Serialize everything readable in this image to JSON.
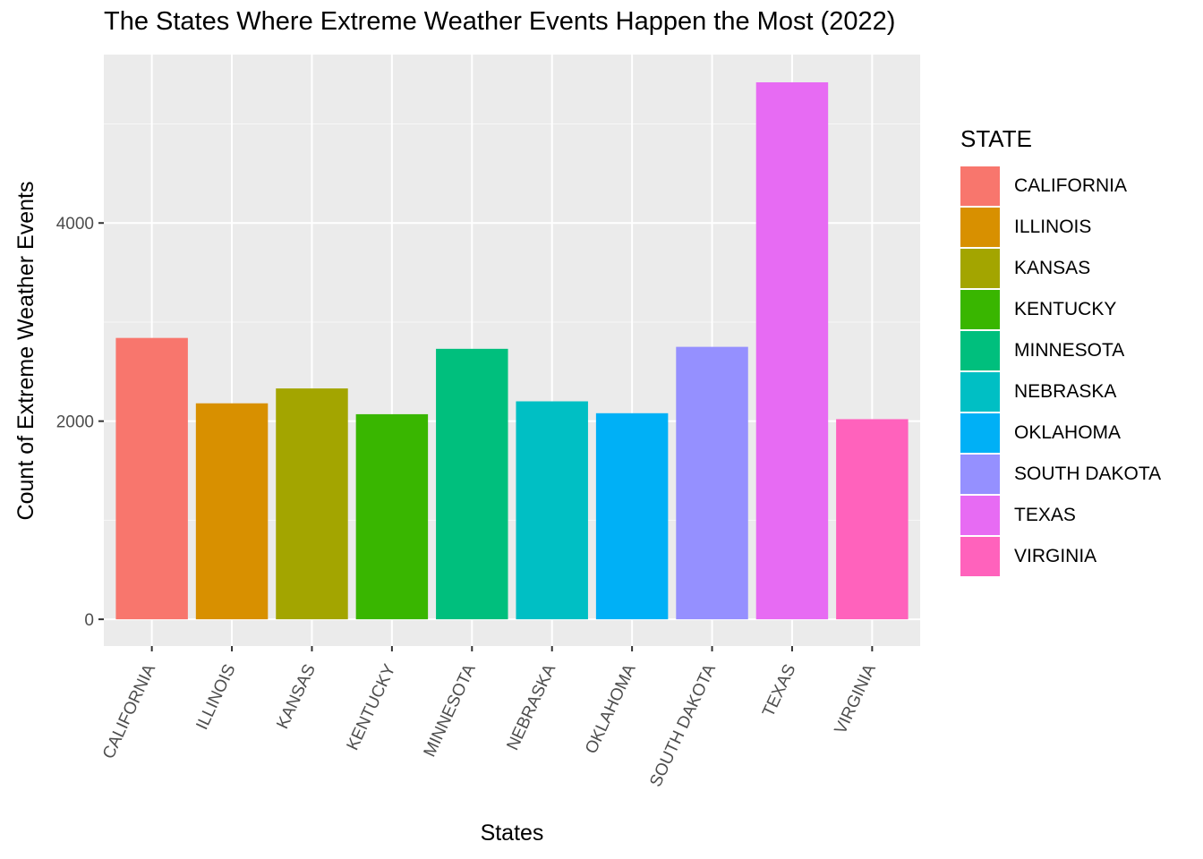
{
  "chart_data": {
    "type": "bar",
    "title": "The States Where Extreme Weather Events Happen the Most (2022)",
    "xlabel": "States",
    "ylabel": "Count of Extreme Weather Events",
    "categories": [
      "CALIFORNIA",
      "ILLINOIS",
      "KANSAS",
      "KENTUCKY",
      "MINNESOTA",
      "NEBRASKA",
      "OKLAHOMA",
      "SOUTH DAKOTA",
      "TEXAS",
      "VIRGINIA"
    ],
    "values": [
      2840,
      2180,
      2330,
      2070,
      2730,
      2200,
      2080,
      2750,
      5420,
      2020
    ],
    "colors": [
      "#F8766D",
      "#D89000",
      "#A3A500",
      "#39B600",
      "#00BF7D",
      "#00BFC4",
      "#00B0F6",
      "#9590FF",
      "#E76BF3",
      "#FF62BC"
    ],
    "ylim": [
      -270,
      5700
    ],
    "yticks": [
      0,
      2000,
      4000
    ],
    "ytick_labels": [
      "0",
      "2000",
      "4000"
    ],
    "grid": true,
    "panel_background": "#EBEBEB",
    "legend_title": "STATE",
    "legend_position": "right"
  }
}
